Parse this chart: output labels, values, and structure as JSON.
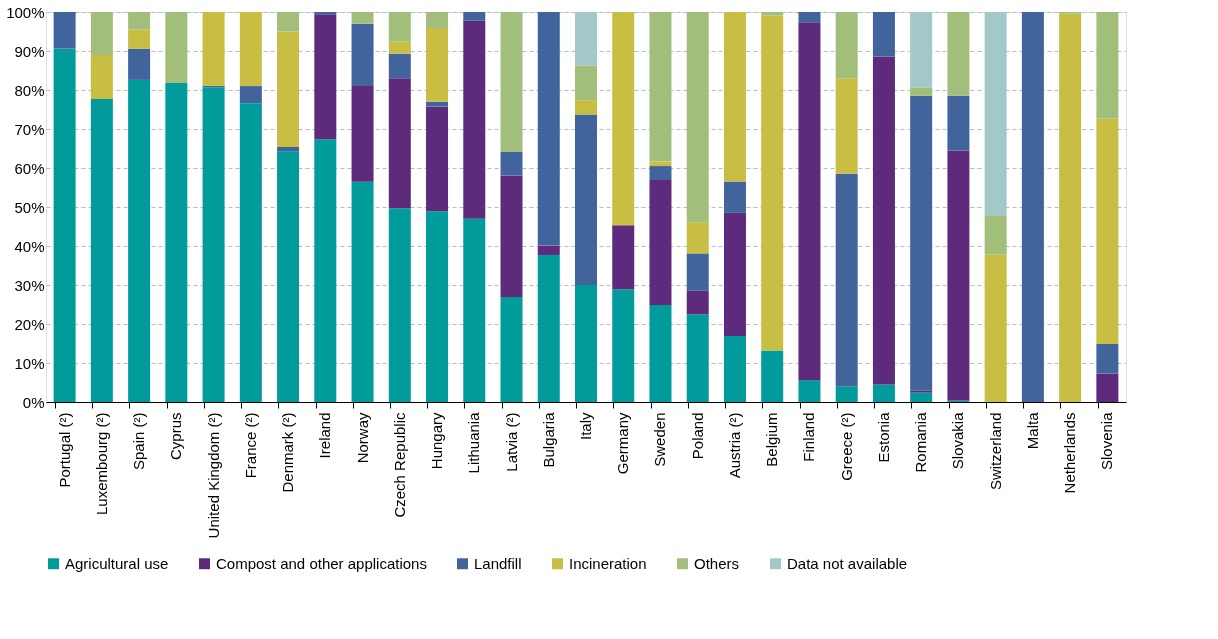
{
  "chart_data": {
    "type": "bar",
    "stacked": true,
    "categories": [
      "Portugal (²)",
      "Luxembourg (²)",
      "Spain (²)",
      "Cyprus",
      "United Kingdom (²)",
      "France (²)",
      "Denmark (²)",
      "Ireland",
      "Norway",
      "Czech Republic",
      "Hungary",
      "Lithuania",
      "Latvia (²)",
      "Bulgaria",
      "Italy",
      "Germany",
      "Sweden",
      "Poland",
      "Austria (²)",
      "Belgium",
      "Finland",
      "Greece (²)",
      "Estonia",
      "Romania",
      "Slovakia",
      "Switzerland",
      "Malta",
      "Netherlands",
      "Slovenia"
    ],
    "series": [
      {
        "name": "Agricultural use",
        "color": "#009b9a",
        "values": [
          90.6,
          77.7,
          82.6,
          81.8,
          80.7,
          76.6,
          64.2,
          67.4,
          56.5,
          49.7,
          48.9,
          47.0,
          26.9,
          37.7,
          30.0,
          28.9,
          24.9,
          22.5,
          16.9,
          13.2,
          5.6,
          4.0,
          4.5,
          2.4,
          0.4,
          null,
          null,
          null,
          null
        ]
      },
      {
        "name": "Compost and other applications",
        "color": "#5e2a7b",
        "values": [
          null,
          null,
          null,
          null,
          null,
          null,
          null,
          32.0,
          24.5,
          33.3,
          26.9,
          50.8,
          31.2,
          2.4,
          null,
          16.4,
          32.0,
          6.0,
          31.6,
          null,
          91.8,
          null,
          84.1,
          0.5,
          64.1,
          null,
          null,
          null,
          7.3
        ]
      },
      {
        "name": "Landfill",
        "color": "#42649c",
        "values": [
          9.4,
          null,
          8.0,
          null,
          0.4,
          4.4,
          1.2,
          0.6,
          16.0,
          6.3,
          1.2,
          2.2,
          6.0,
          59.9,
          43.7,
          null,
          3.6,
          9.6,
          8.0,
          null,
          2.6,
          54.5,
          11.4,
          75.6,
          14.0,
          null,
          100,
          null,
          7.6
        ]
      },
      {
        "name": "Incineration",
        "color": "#c8be44",
        "values": [
          null,
          11.3,
          4.9,
          null,
          18.9,
          19.0,
          29.6,
          null,
          null,
          3.2,
          18.9,
          null,
          null,
          null,
          3.7,
          54.7,
          1.2,
          8.0,
          43.5,
          85.9,
          null,
          24.5,
          null,
          null,
          null,
          37.8,
          null,
          99.6,
          57.8
        ]
      },
      {
        "name": "Others",
        "color": "#a1be7a",
        "values": [
          null,
          11.0,
          4.5,
          18.2,
          null,
          null,
          5.0,
          null,
          3.0,
          7.5,
          4.1,
          null,
          35.9,
          null,
          8.9,
          null,
          38.3,
          53.9,
          null,
          0.9,
          null,
          17.0,
          null,
          2.1,
          21.5,
          10.1,
          null,
          0.4,
          27.3
        ]
      },
      {
        "name": "Data not available",
        "color": "#a3c8c8",
        "values": [
          null,
          null,
          null,
          null,
          null,
          null,
          null,
          null,
          null,
          null,
          null,
          null,
          null,
          null,
          13.7,
          null,
          null,
          null,
          null,
          null,
          null,
          null,
          null,
          19.4,
          null,
          52.1,
          null,
          null,
          null
        ]
      }
    ],
    "ylim": [
      0,
      100
    ],
    "yticks": [
      {
        "value": 0,
        "label": "0%"
      },
      {
        "value": 10,
        "label": "10%"
      },
      {
        "value": 20,
        "label": "20%"
      },
      {
        "value": 30,
        "label": "30%"
      },
      {
        "value": 40,
        "label": "40%"
      },
      {
        "value": 50,
        "label": "50%"
      },
      {
        "value": 60,
        "label": "60%"
      },
      {
        "value": 70,
        "label": "70%"
      },
      {
        "value": 80,
        "label": "80%"
      },
      {
        "value": 90,
        "label": "90%"
      },
      {
        "value": 100,
        "label": "100%"
      }
    ],
    "grid": "y",
    "legend": "bottom"
  }
}
